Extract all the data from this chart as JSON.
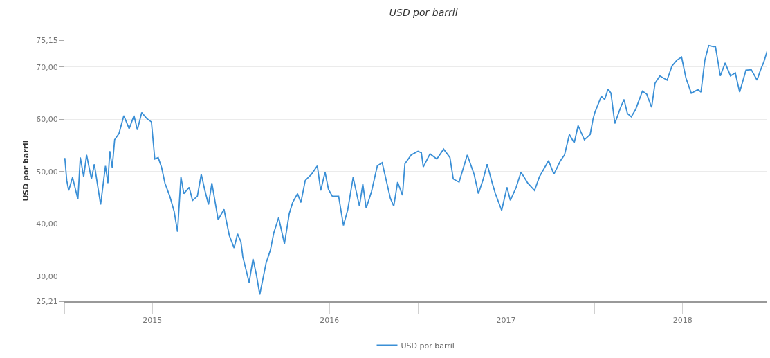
{
  "chart_data": {
    "type": "line",
    "title": "USD por barril",
    "ylabel": "USD por barril",
    "x": [
      "2015-01-02",
      "2015-01-06",
      "2015-01-10",
      "2015-01-18",
      "2015-01-29",
      "2015-02-03",
      "2015-02-10",
      "2015-02-16",
      "2015-02-26",
      "2015-03-04",
      "2015-03-17",
      "2015-03-27",
      "2015-04-01",
      "2015-04-05",
      "2015-04-10",
      "2015-04-15",
      "2015-04-24",
      "2015-05-04",
      "2015-05-15",
      "2015-05-25",
      "2015-06-01",
      "2015-06-10",
      "2015-06-20",
      "2015-06-30",
      "2015-07-07",
      "2015-07-14",
      "2015-07-21",
      "2015-07-28",
      "2015-08-07",
      "2015-08-16",
      "2015-08-23",
      "2015-08-30",
      "2015-09-05",
      "2015-09-16",
      "2015-09-23",
      "2015-10-03",
      "2015-10-11",
      "2015-10-18",
      "2015-10-26",
      "2015-11-02",
      "2015-11-15",
      "2015-11-27",
      "2015-12-08",
      "2015-12-18",
      "2015-12-25",
      "2016-01-01",
      "2016-01-05",
      "2016-01-18",
      "2016-01-26",
      "2016-02-02",
      "2016-02-09",
      "2016-02-22",
      "2016-03-02",
      "2016-03-09",
      "2016-03-19",
      "2016-03-31",
      "2016-04-10",
      "2016-04-17",
      "2016-04-27",
      "2016-05-04",
      "2016-05-13",
      "2016-05-26",
      "2016-06-07",
      "2016-06-14",
      "2016-06-23",
      "2016-06-30",
      "2016-07-08",
      "2016-07-21",
      "2016-07-31",
      "2016-08-09",
      "2016-08-20",
      "2016-09-02",
      "2016-09-09",
      "2016-09-16",
      "2016-09-27",
      "2016-10-09",
      "2016-10-19",
      "2016-11-05",
      "2016-11-12",
      "2016-11-20",
      "2016-11-30",
      "2016-12-05",
      "2016-12-18",
      "2017-01-01",
      "2017-01-08",
      "2017-01-12",
      "2017-01-26",
      "2017-02-09",
      "2017-02-23",
      "2017-03-08",
      "2017-03-15",
      "2017-03-27",
      "2017-04-13",
      "2017-04-27",
      "2017-05-06",
      "2017-05-16",
      "2017-05-24",
      "2017-06-03",
      "2017-06-10",
      "2017-06-23",
      "2017-07-04",
      "2017-07-11",
      "2017-07-23",
      "2017-08-02",
      "2017-08-16",
      "2017-08-30",
      "2017-09-09",
      "2017-09-28",
      "2017-10-09",
      "2017-10-22",
      "2017-10-31",
      "2017-11-10",
      "2017-11-20",
      "2017-11-28",
      "2017-12-11",
      "2017-12-23",
      "2017-12-29",
      "2018-01-02",
      "2018-01-15",
      "2018-01-22",
      "2018-01-29",
      "2018-02-04",
      "2018-02-12",
      "2018-02-24",
      "2018-03-03",
      "2018-03-10",
      "2018-03-18",
      "2018-03-27",
      "2018-04-10",
      "2018-04-19",
      "2018-04-29",
      "2018-05-06",
      "2018-05-16",
      "2018-05-31",
      "2018-06-10",
      "2018-06-20",
      "2018-06-30",
      "2018-07-09",
      "2018-07-20",
      "2018-08-03",
      "2018-08-09",
      "2018-08-17",
      "2018-08-25",
      "2018-09-04",
      "2018-09-08",
      "2018-09-14",
      "2018-09-18",
      "2018-09-28",
      "2018-10-09",
      "2018-10-19",
      "2018-10-28",
      "2018-11-10",
      "2018-11-21",
      "2018-12-03",
      "2018-12-10",
      "2018-12-17",
      "2018-12-24"
    ],
    "series": [
      {
        "name": "USD por barril",
        "color": "#3a8fd6",
        "values": [
          52.6,
          48.3,
          46.4,
          48.9,
          44.7,
          52.7,
          49.0,
          53.2,
          48.6,
          51.4,
          43.7,
          51.1,
          47.8,
          53.9,
          50.8,
          56.1,
          57.3,
          60.7,
          58.2,
          60.7,
          58.0,
          61.3,
          60.2,
          59.5,
          52.4,
          52.7,
          50.8,
          47.8,
          45.3,
          42.4,
          38.5,
          49.0,
          45.8,
          47.0,
          44.5,
          45.3,
          49.5,
          46.6,
          43.7,
          47.8,
          40.8,
          42.8,
          37.8,
          35.4,
          38.1,
          36.6,
          33.7,
          28.8,
          33.3,
          30.3,
          26.5,
          32.5,
          35.0,
          38.3,
          41.2,
          36.2,
          42.0,
          44.1,
          45.8,
          44.1,
          48.3,
          49.5,
          51.1,
          46.4,
          49.9,
          46.6,
          45.3,
          45.3,
          39.7,
          42.8,
          48.9,
          43.4,
          47.6,
          43.0,
          46.2,
          51.1,
          51.7,
          44.9,
          43.4,
          48.0,
          45.5,
          51.5,
          53.2,
          53.9,
          53.6,
          50.9,
          53.4,
          52.4,
          54.3,
          52.7,
          48.6,
          48.0,
          53.2,
          49.5,
          45.8,
          48.6,
          51.4,
          48.0,
          45.8,
          42.6,
          47.0,
          44.5,
          47.0,
          49.9,
          47.8,
          46.4,
          49.0,
          52.1,
          49.5,
          52.0,
          53.2,
          57.1,
          55.5,
          58.8,
          56.1,
          57.1,
          60.1,
          61.4,
          64.4,
          63.8,
          65.8,
          65.0,
          59.2,
          62.3,
          63.8,
          61.1,
          60.5,
          61.9,
          65.4,
          64.8,
          62.3,
          66.9,
          68.3,
          67.5,
          70.2,
          71.3,
          71.9,
          67.9,
          65.0,
          65.7,
          65.2,
          71.3,
          74.1,
          73.9,
          73.9,
          70.6,
          68.3,
          70.8,
          68.3,
          68.9,
          65.2,
          69.4,
          69.5,
          67.5,
          69.4,
          71.0,
          73.1
        ]
      }
    ],
    "xlim": [
      "2015-01-01",
      "2018-12-24"
    ],
    "xticks": [
      {
        "value": "2015-01-01",
        "label": null
      },
      {
        "value": "2015-07-02",
        "label": "2015"
      },
      {
        "value": "2016-01-01",
        "label": null
      },
      {
        "value": "2016-07-02",
        "label": "2016"
      },
      {
        "value": "2017-01-01",
        "label": null
      },
      {
        "value": "2017-07-02",
        "label": "2017"
      },
      {
        "value": "2018-01-01",
        "label": null
      },
      {
        "value": "2018-07-02",
        "label": "2018"
      }
    ],
    "ylim": [
      25.21,
      75.15
    ],
    "yticks": [
      {
        "value": 25.21,
        "label": "25,21"
      },
      {
        "value": 30,
        "label": "30,00"
      },
      {
        "value": 40,
        "label": "40,00"
      },
      {
        "value": 50,
        "label": "50,00"
      },
      {
        "value": 60,
        "label": "60,00"
      },
      {
        "value": 70,
        "label": "70,00"
      },
      {
        "value": 75.15,
        "label": "75,15"
      }
    ],
    "grid": "y",
    "legend": "bottom",
    "marker": "none",
    "line_style": "solid"
  }
}
